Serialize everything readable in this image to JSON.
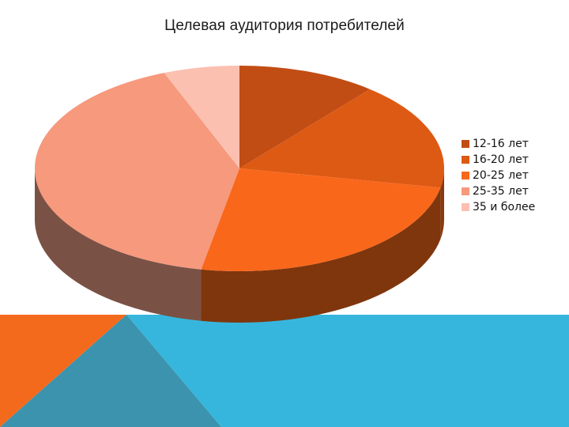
{
  "chart_data": {
    "type": "pie",
    "title": "Целевая аудитория потребителей",
    "categories": [
      "12-16 лет",
      "16-20 лет",
      "20-25 лет",
      "25-35 лет",
      "35 и более"
    ],
    "values": [
      11,
      17,
      25,
      41,
      6
    ],
    "units": "%",
    "legend": "right",
    "three_d": true
  },
  "colors": {
    "slices": [
      "#C24D14",
      "#DD5A14",
      "#F9671B",
      "#F6997D",
      "#FBC0B0"
    ],
    "slice_sides": [
      "#7A300D",
      "#8A3A10",
      "#7F360D",
      "#7A5245",
      "#9A7468"
    ],
    "background_blue": "#37B6DD",
    "background_teal": "#3B93AE",
    "background_orange": "#F46A1C"
  }
}
